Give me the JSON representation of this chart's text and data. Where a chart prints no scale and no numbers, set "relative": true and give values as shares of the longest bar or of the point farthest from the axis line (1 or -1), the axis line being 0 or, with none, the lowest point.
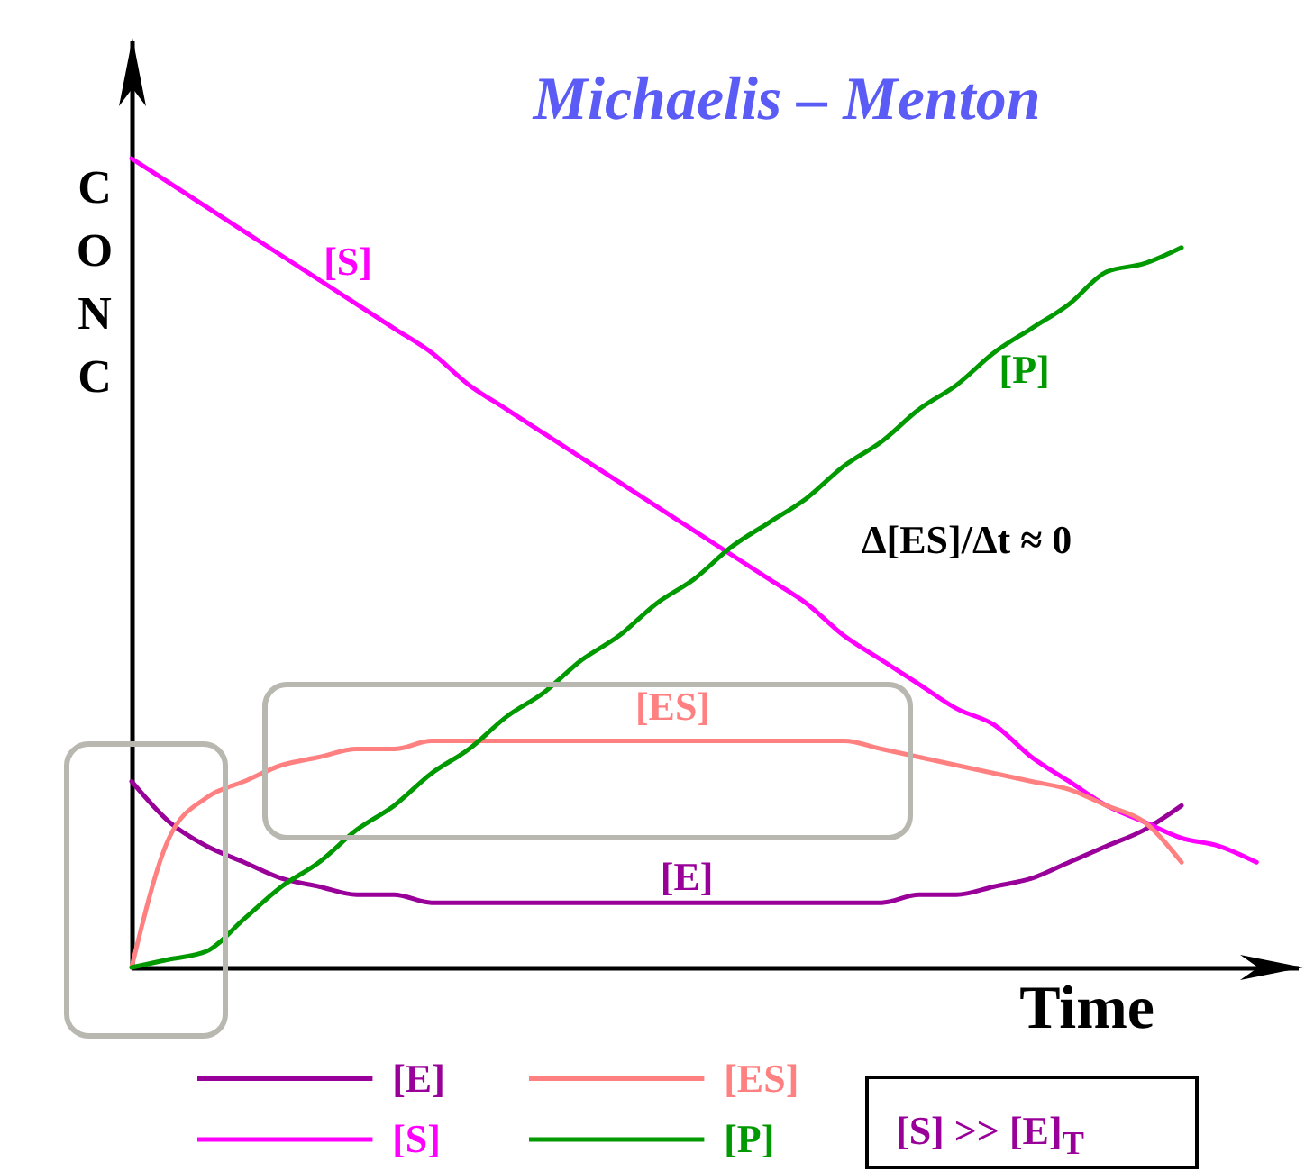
{
  "chart_data": {
    "type": "line",
    "title": "Michaelis – Menton",
    "xlabel": "Time",
    "ylabel": "CONC",
    "relative": true,
    "legend": "bottom left",
    "categories": [
      null,
      null,
      null,
      null,
      null,
      null,
      null,
      null,
      null,
      null,
      null,
      null,
      null,
      null,
      null,
      null,
      null,
      null,
      null,
      null,
      null,
      null,
      null,
      null,
      null,
      null,
      null,
      null,
      null,
      null,
      null
    ],
    "series": [
      {
        "name": "[E]",
        "color": "#990099",
        "values": [
          0.23,
          0.18,
          0.15,
          0.13,
          0.11,
          0.1,
          0.09,
          0.09,
          0.08,
          0.08,
          0.08,
          0.08,
          0.08,
          0.08,
          0.08,
          0.08,
          0.08,
          0.08,
          0.08,
          0.08,
          0.08,
          0.09,
          0.09,
          0.1,
          0.11,
          0.13,
          0.15,
          0.17,
          0.2,
          null,
          null
        ]
      },
      {
        "name": "[S]",
        "color": "#ff00ff",
        "values": [
          1,
          0.97,
          0.94,
          0.91,
          0.88,
          0.85,
          0.82,
          0.79,
          0.76,
          0.72,
          0.69,
          0.66,
          0.63,
          0.6,
          0.57,
          0.54,
          0.51,
          0.48,
          0.45,
          0.41,
          0.38,
          0.35,
          0.32,
          0.3,
          0.26,
          0.23,
          0.2,
          0.18,
          0.16,
          0.15,
          0.13
        ]
      },
      {
        "name": "[ES]",
        "color": "#ff8080",
        "values": [
          0,
          0.16,
          0.21,
          0.23,
          0.25,
          0.26,
          0.27,
          0.27,
          0.28,
          0.28,
          0.28,
          0.28,
          0.28,
          0.28,
          0.28,
          0.28,
          0.28,
          0.28,
          0.28,
          0.28,
          0.27,
          0.26,
          0.25,
          0.24,
          0.23,
          0.22,
          0.2,
          0.18,
          0.13,
          null,
          null
        ]
      },
      {
        "name": "[P]",
        "color": "#009900",
        "values": [
          0,
          0.01,
          0.02,
          0.06,
          0.1,
          0.13,
          0.17,
          0.2,
          0.24,
          0.27,
          0.31,
          0.34,
          0.38,
          0.41,
          0.45,
          0.48,
          0.52,
          0.55,
          0.58,
          0.62,
          0.65,
          0.69,
          0.72,
          0.76,
          0.79,
          0.82,
          0.86,
          0.87,
          0.89,
          null,
          null
        ]
      }
    ],
    "annotations": [
      "Δ[ES]/Δt ≈ 0",
      "[S] >> [E]$_{T}$"
    ]
  }
}
